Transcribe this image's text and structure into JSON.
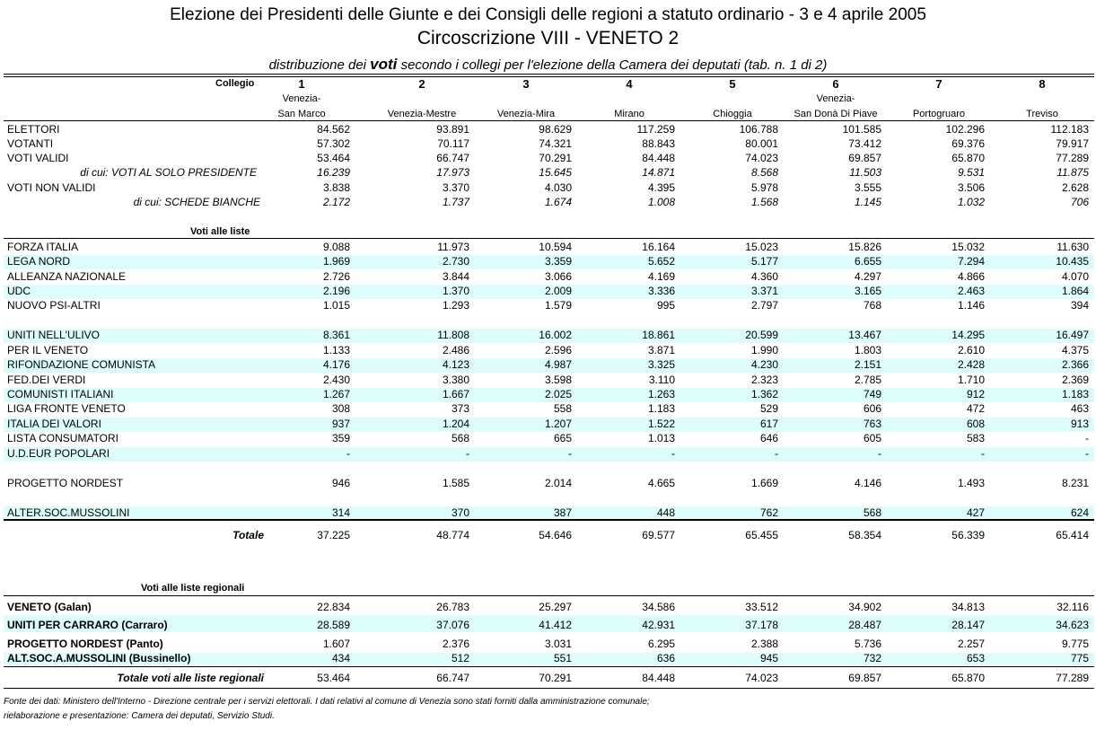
{
  "title": "Elezione dei Presidenti delle Giunte e dei Consigli delle regioni a statuto ordinario - 3 e 4 aprile 2005",
  "subtitle": "Circoscrizione VIII - VENETO 2",
  "caption": {
    "pre": "distribuzione dei",
    "bold": "voti",
    "post": "secondo i collegi per l'elezione della Camera dei deputati (tab. n. 1 di 2)"
  },
  "header": {
    "collegio_label": "Collegio",
    "numbers": [
      "1",
      "2",
      "3",
      "4",
      "5",
      "6",
      "7",
      "8"
    ],
    "names_top": [
      "Venezia-",
      "",
      "",
      "",
      "",
      "Venezia-",
      "",
      ""
    ],
    "names_bottom": [
      "San Marco",
      "Venezia-Mestre",
      "Venezia-Mira",
      "Mirano",
      "Chioggia",
      "San Donà Di Piave",
      "Portogruaro",
      "Treviso"
    ]
  },
  "summary": [
    {
      "label": "ELETTORI",
      "values": [
        "84.562",
        "93.891",
        "98.629",
        "117.259",
        "106.788",
        "101.585",
        "102.296",
        "112.183"
      ]
    },
    {
      "label": "VOTANTI",
      "values": [
        "57.302",
        "70.117",
        "74.321",
        "88.843",
        "80.001",
        "73.412",
        "69.376",
        "79.917"
      ]
    },
    {
      "label": "VOTI VALIDI",
      "values": [
        "53.464",
        "66.747",
        "70.291",
        "84.448",
        "74.023",
        "69.857",
        "65.870",
        "77.289"
      ]
    },
    {
      "label": "di cui: VOTI AL SOLO PRESIDENTE",
      "values": [
        "16.239",
        "17.973",
        "15.645",
        "14.871",
        "8.568",
        "11.503",
        "9.531",
        "11.875"
      ]
    },
    {
      "label": "VOTI NON VALIDI",
      "values": [
        "3.838",
        "3.370",
        "4.030",
        "4.395",
        "5.978",
        "3.555",
        "3.506",
        "2.628"
      ]
    },
    {
      "label": "di cui:  SCHEDE BIANCHE",
      "values": [
        "2.172",
        "1.737",
        "1.674",
        "1.008",
        "1.568",
        "1.145",
        "1.032",
        "706"
      ]
    }
  ],
  "liste_heading": "Voti alle liste",
  "liste": [
    {
      "label": "FORZA ITALIA",
      "values": [
        "9.088",
        "11.973",
        "10.594",
        "16.164",
        "15.023",
        "15.826",
        "15.032",
        "11.630"
      ]
    },
    {
      "label": "LEGA NORD",
      "values": [
        "1.969",
        "2.730",
        "3.359",
        "5.652",
        "5.177",
        "6.655",
        "7.294",
        "10.435"
      ]
    },
    {
      "label": "ALLEANZA NAZIONALE",
      "values": [
        "2.726",
        "3.844",
        "3.066",
        "4.169",
        "4.360",
        "4.297",
        "4.866",
        "4.070"
      ]
    },
    {
      "label": "UDC",
      "values": [
        "2.196",
        "1.370",
        "2.009",
        "3.336",
        "3.371",
        "3.165",
        "2.463",
        "1.864"
      ]
    },
    {
      "label": "NUOVO PSI-ALTRI",
      "values": [
        "1.015",
        "1.293",
        "1.579",
        "995",
        "2.797",
        "768",
        "1.146",
        "394"
      ]
    },
    {
      "label": "UNITI NELL'ULIVO",
      "values": [
        "8.361",
        "11.808",
        "16.002",
        "18.861",
        "20.599",
        "13.467",
        "14.295",
        "16.497"
      ]
    },
    {
      "label": "PER IL VENETO",
      "values": [
        "1.133",
        "2.486",
        "2.596",
        "3.871",
        "1.990",
        "1.803",
        "2.610",
        "4.375"
      ]
    },
    {
      "label": "RIFONDAZIONE COMUNISTA",
      "values": [
        "4.176",
        "4.123",
        "4.987",
        "3.325",
        "4.230",
        "2.151",
        "2.428",
        "2.366"
      ]
    },
    {
      "label": "FED.DEI VERDI",
      "values": [
        "2.430",
        "3.380",
        "3.598",
        "3.110",
        "2.323",
        "2.785",
        "1.710",
        "2.369"
      ]
    },
    {
      "label": "COMUNISTI ITALIANI",
      "values": [
        "1.267",
        "1.667",
        "2.025",
        "1.263",
        "1.362",
        "749",
        "912",
        "1.183"
      ]
    },
    {
      "label": "LIGA FRONTE VENETO",
      "values": [
        "308",
        "373",
        "558",
        "1.183",
        "529",
        "606",
        "472",
        "463"
      ]
    },
    {
      "label": "ITALIA DEI VALORI",
      "values": [
        "937",
        "1.204",
        "1.207",
        "1.522",
        "617",
        "763",
        "608",
        "913"
      ]
    },
    {
      "label": "LISTA CONSUMATORI",
      "values": [
        "359",
        "568",
        "665",
        "1.013",
        "646",
        "605",
        "583",
        "-"
      ]
    },
    {
      "label": "U.D.EUR POPOLARI",
      "values": [
        "-",
        "-",
        "-",
        "-",
        "-",
        "-",
        "-",
        "-"
      ]
    },
    {
      "label": "PROGETTO NORDEST",
      "values": [
        "946",
        "1.585",
        "2.014",
        "4.665",
        "1.669",
        "4.146",
        "1.493",
        "8.231"
      ]
    },
    {
      "label": "ALTER.SOC.MUSSOLINI",
      "values": [
        "314",
        "370",
        "387",
        "448",
        "762",
        "568",
        "427",
        "624"
      ]
    }
  ],
  "totale": {
    "label": "Totale",
    "values": [
      "37.225",
      "48.774",
      "54.646",
      "69.577",
      "65.455",
      "58.354",
      "56.339",
      "65.414"
    ]
  },
  "regionali_heading": "Voti alle liste regionali",
  "regionali": [
    {
      "label": "VENETO (Galan)",
      "values": [
        "22.834",
        "26.783",
        "25.297",
        "34.586",
        "33.512",
        "34.902",
        "34.813",
        "32.116"
      ]
    },
    {
      "label": "UNITI PER CARRARO (Carraro)",
      "values": [
        "28.589",
        "37.076",
        "41.412",
        "42.931",
        "37.178",
        "28.487",
        "28.147",
        "34.623"
      ]
    },
    {
      "label": "PROGETTO NORDEST (Panto)",
      "values": [
        "1.607",
        "2.376",
        "3.031",
        "6.295",
        "2.388",
        "5.736",
        "2.257",
        "9.775"
      ]
    },
    {
      "label": "ALT.SOC.A.MUSSOLINI (Bussinello)",
      "values": [
        "434",
        "512",
        "551",
        "636",
        "945",
        "732",
        "653",
        "775"
      ]
    }
  ],
  "totale_regionali": {
    "label": "Totale voti alle liste regionali",
    "values": [
      "53.464",
      "66.747",
      "70.291",
      "84.448",
      "74.023",
      "69.857",
      "65.870",
      "77.289"
    ]
  },
  "notes": [
    "Fonte dei dati: Ministero dell'Interno - Direzione centrale per i servizi elettorali. I dati relativi al comune di Venezia sono stati forniti dalla amministrazione comunale;",
    "rielaborazione e presentazione: Camera dei deputati, Servizio Studi."
  ]
}
